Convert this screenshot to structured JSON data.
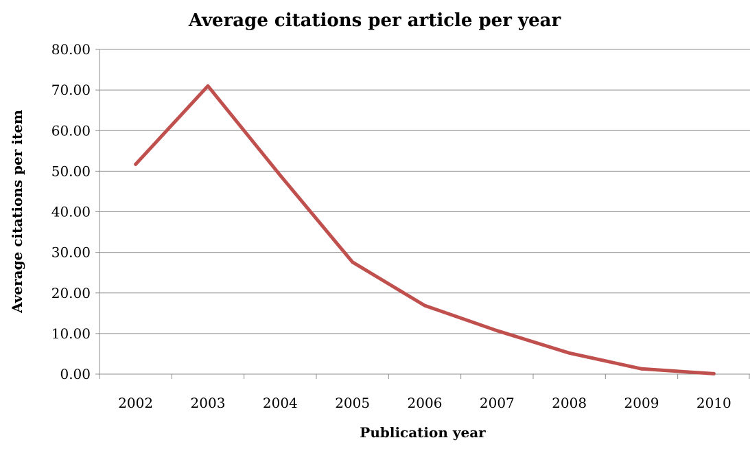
{
  "chart_data": {
    "type": "line",
    "title": "Average citations per article per year",
    "xlabel": "Publication year",
    "ylabel": "Average citations per item",
    "categories": [
      "2002",
      "2003",
      "2004",
      "2005",
      "2006",
      "2007",
      "2008",
      "2009",
      "2010"
    ],
    "series": [
      {
        "values": [
          51.7,
          71.0,
          49.0,
          27.6,
          16.9,
          10.7,
          5.2,
          1.3,
          0.1
        ],
        "color": "#c0504d"
      }
    ],
    "ylim": [
      0,
      80
    ],
    "yticks": [
      "0.00",
      "10.00",
      "20.00",
      "30.00",
      "40.00",
      "50.00",
      "60.00",
      "70.00",
      "80.00"
    ],
    "grid": true,
    "legend": "none"
  }
}
